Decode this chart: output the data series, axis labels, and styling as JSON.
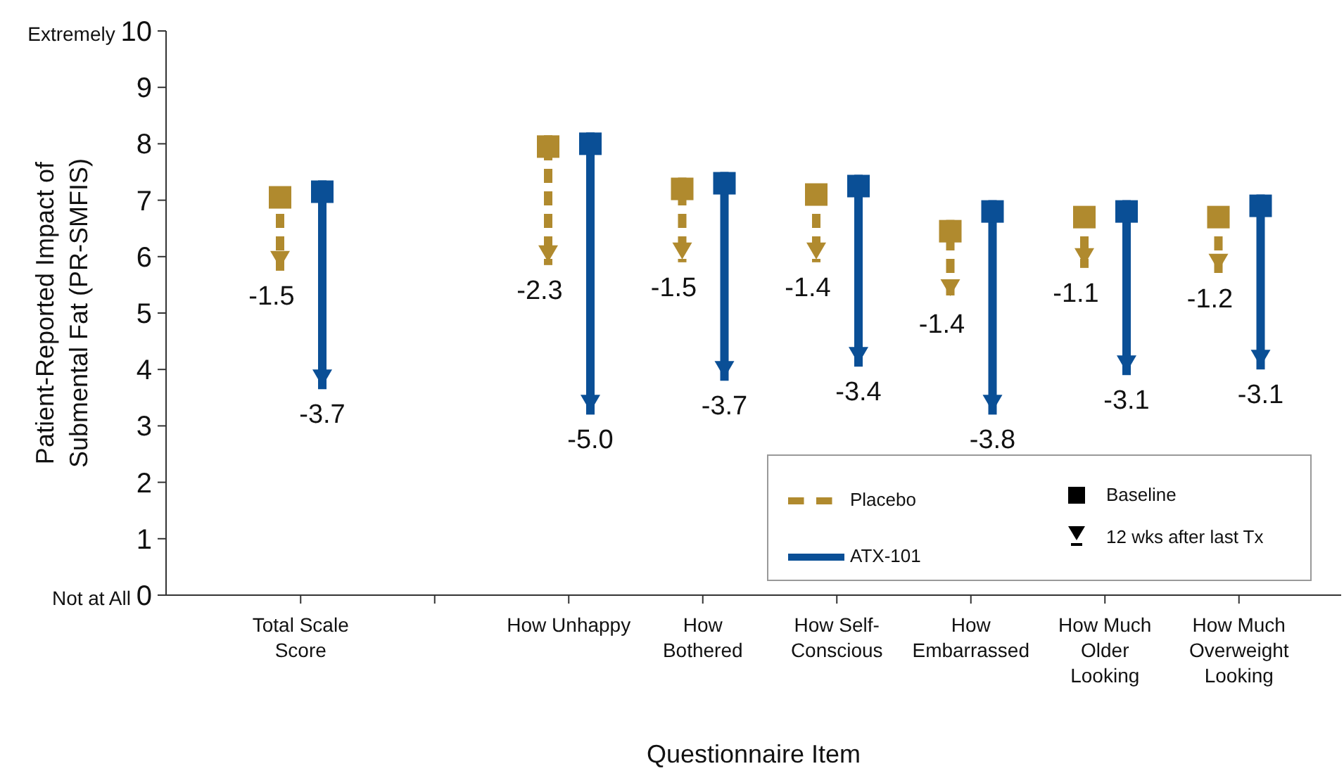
{
  "chart_data": {
    "type": "bar",
    "xlabel": "Questionnaire Item",
    "ylabel": "Patient-Reported Impact of Submental Fat (PR-SMFIS)",
    "categories": [
      "Total Scale Score",
      null,
      "How Unhappy",
      "How Bothered",
      "How Self-Conscious",
      "How Embarrassed",
      "How Much Older Looking",
      "How Much Overweight Looking"
    ],
    "series": [
      {
        "name": "Placebo",
        "color": "#b08a2e",
        "line_style": "dashed",
        "base": [
          7.25,
          null,
          8.15,
          7.4,
          7.3,
          6.65,
          6.9,
          6.9
        ],
        "values": [
          -1.5,
          null,
          -2.3,
          -1.5,
          -1.4,
          -1.4,
          -1.1,
          -1.2
        ],
        "value_labels": [
          "-1.5",
          null,
          "-2.3",
          "-1.5",
          "-1.4",
          "-1.4",
          "-1.1",
          "-1.2"
        ]
      },
      {
        "name": "ATX-101",
        "color": "#0a4f96",
        "line_style": "solid",
        "base": [
          7.35,
          null,
          8.2,
          7.5,
          7.45,
          7.0,
          7.0,
          7.1
        ],
        "values": [
          -3.7,
          null,
          -5.0,
          -3.7,
          -3.4,
          -3.8,
          -3.1,
          -3.1
        ],
        "value_labels": [
          "-3.7",
          null,
          "-5.0",
          "-3.7",
          "-3.4",
          "-3.8",
          "-3.1",
          "-3.1"
        ]
      }
    ],
    "marker": "square",
    "annotations": [
      "Baseline",
      "12 wks after last Tx"
    ],
    "ylim": [
      0,
      10
    ],
    "yticks": [
      {
        "value": 0,
        "label": "Not at All 0"
      },
      1,
      2,
      3,
      4,
      5,
      6,
      7,
      8,
      9,
      {
        "value": 10,
        "label": "Extremely 10"
      }
    ],
    "grid": false,
    "legend": "bottom right"
  }
}
